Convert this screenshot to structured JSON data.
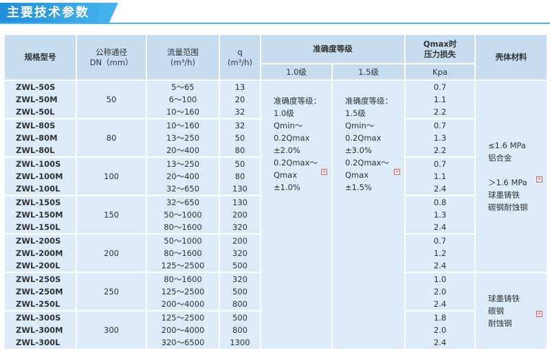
{
  "header": {
    "title": "主要技术参数"
  },
  "table": {
    "headers": {
      "model": "规格型号",
      "dn": "公称通径\nDN（mm）",
      "flow": "流量范围\n(m³/h)",
      "q": "q\n(m³/h)",
      "accuracy": "准确度等级",
      "acc1": "1.0级",
      "acc2": "1.5级",
      "loss": "Qmax时\n压力损失",
      "loss_unit": "Kpa",
      "material": "壳体材料"
    },
    "accuracy": [
      "准确度等级：\n1.0级\nQmin～\n0.2Qmax\n±2.0%\n0.2Qmax～\nQmax\n±1.0%",
      "准确度等级：\n1.5级\nQmin～\n0.2Qmax\n±3.0%\n0.2Qmax～\nQmax\n±1.5%"
    ],
    "materials": [
      "≤1.6 MPa\n铝合金\n\n＞1.6 MPa\n球墨铸铁\n碳钢耐蚀钢",
      "球墨铸铁\n碳钢\n耐蚀钢"
    ],
    "groups": [
      {
        "models": [
          "ZWL-50S",
          "ZWL-50M",
          "ZWL-50L"
        ],
        "dn": "50",
        "flows": [
          "5～65",
          "6～100",
          "10～160"
        ],
        "q": [
          "13",
          "20",
          "32"
        ],
        "loss": [
          "0.7",
          "1.1",
          "2.2"
        ]
      },
      {
        "models": [
          "ZWL-80S",
          "ZWL-80M",
          "ZWL-80L"
        ],
        "dn": "80",
        "flows": [
          "10～160",
          "13～250",
          "20～400"
        ],
        "q": [
          "32",
          "50",
          "80"
        ],
        "loss": [
          "0.7",
          "1.3",
          "2.2"
        ]
      },
      {
        "models": [
          "ZWL-100S",
          "ZWL-100M",
          "ZWL-100L"
        ],
        "dn": "100",
        "flows": [
          "13～250",
          "20～400",
          "32～650"
        ],
        "q": [
          "50",
          "80",
          "130"
        ],
        "loss": [
          "0.7",
          "1.1",
          "2.4"
        ]
      },
      {
        "models": [
          "ZWL-150S",
          "ZWL-150M",
          "ZWL-150L"
        ],
        "dn": "150",
        "flows": [
          "32～650",
          "50～1000",
          "80～1600"
        ],
        "q": [
          "130",
          "200",
          "320"
        ],
        "loss": [
          "0.8",
          "1.3",
          "2.4"
        ]
      },
      {
        "models": [
          "ZWL-200S",
          "ZWL-200M",
          "ZWL-200L"
        ],
        "dn": "200",
        "flows": [
          "50～1000",
          "80～1600",
          "125～2500"
        ],
        "q": [
          "200",
          "320",
          "500"
        ],
        "loss": [
          "0.7",
          "1.2",
          "2.4"
        ]
      },
      {
        "models": [
          "ZWL-250S",
          "ZWL-250M",
          "ZWL-250L"
        ],
        "dn": "250",
        "flows": [
          "80～1600",
          "125～2500",
          "200～4000"
        ],
        "q": [
          "320",
          "500",
          "800"
        ],
        "loss": [
          "1.0",
          "2.0",
          "2.4"
        ]
      },
      {
        "models": [
          "ZWL-300S",
          "ZWL-300M",
          "ZWL-300L"
        ],
        "dn": "300",
        "flows": [
          "125～2500",
          "200～4000",
          "320～6500"
        ],
        "q": [
          "500",
          "800",
          "1300"
        ],
        "loss": [
          "1.8",
          "2.0",
          "2.4"
        ]
      }
    ]
  }
}
